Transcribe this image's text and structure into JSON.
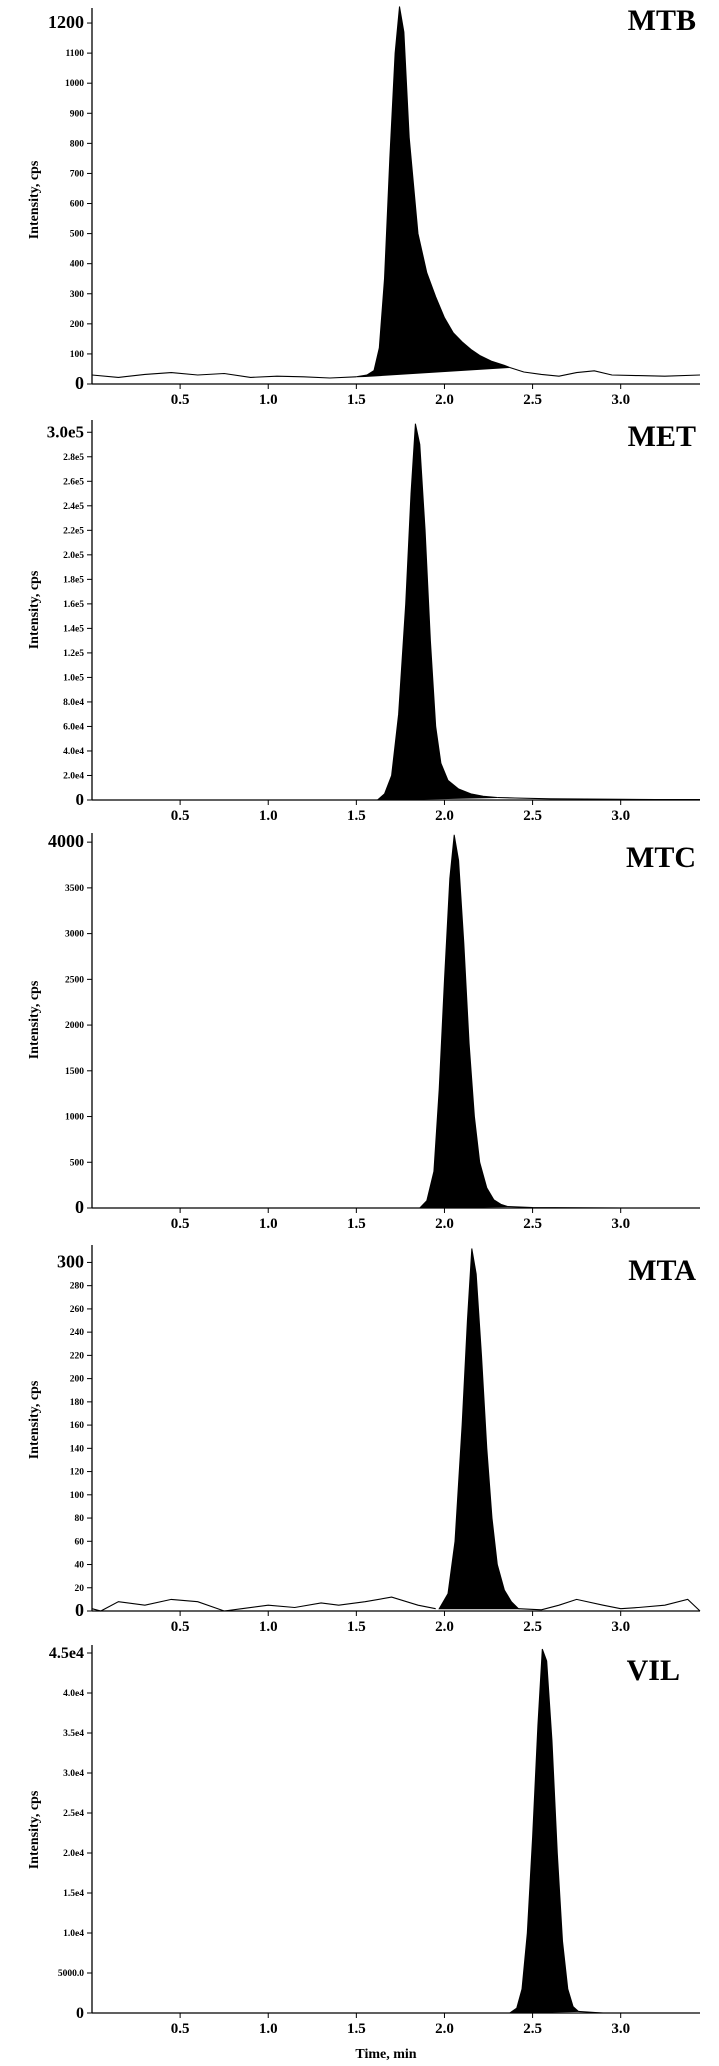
{
  "chart_data": [
    {
      "type": "area",
      "title": "MTB",
      "ylabel": "Intensity, cps",
      "xlabel": "",
      "xlim": [
        0,
        3.45
      ],
      "ylim": [
        0,
        1250
      ],
      "x_ticks": [
        0.5,
        1.0,
        1.5,
        2.0,
        2.5,
        3.0
      ],
      "x_tick_labels": [
        "0.5",
        "1.0",
        "1.5",
        "2.0",
        "2.5",
        "3.0"
      ],
      "y_ticks": [
        0,
        100,
        200,
        300,
        400,
        500,
        600,
        700,
        800,
        900,
        1000,
        1100,
        1200
      ],
      "y_tick_labels": [
        "0",
        "100",
        "200",
        "300",
        "400",
        "500",
        "600",
        "700",
        "800",
        "900",
        "1000",
        "1100",
        "1200"
      ],
      "baseline": [
        [
          0.0,
          30
        ],
        [
          0.15,
          22
        ],
        [
          0.3,
          32
        ],
        [
          0.45,
          38
        ],
        [
          0.6,
          30
        ],
        [
          0.75,
          35
        ],
        [
          0.9,
          22
        ],
        [
          1.05,
          26
        ],
        [
          1.2,
          24
        ],
        [
          1.35,
          20
        ],
        [
          1.5,
          24
        ]
      ],
      "peak": [
        [
          1.5,
          24
        ],
        [
          1.56,
          30
        ],
        [
          1.6,
          45
        ],
        [
          1.63,
          120
        ],
        [
          1.66,
          350
        ],
        [
          1.69,
          750
        ],
        [
          1.72,
          1100
        ],
        [
          1.745,
          1255
        ],
        [
          1.77,
          1170
        ],
        [
          1.8,
          820
        ],
        [
          1.85,
          500
        ],
        [
          1.9,
          370
        ],
        [
          1.95,
          290
        ],
        [
          2.0,
          220
        ],
        [
          2.05,
          170
        ],
        [
          2.1,
          140
        ],
        [
          2.15,
          115
        ],
        [
          2.2,
          95
        ],
        [
          2.27,
          75
        ],
        [
          2.34,
          62
        ],
        [
          2.37,
          55
        ]
      ],
      "peak_closure": [
        [
          2.37,
          55
        ],
        [
          1.55,
          25
        ]
      ],
      "tail": [
        [
          2.37,
          55
        ],
        [
          2.45,
          40
        ],
        [
          2.55,
          32
        ],
        [
          2.65,
          26
        ],
        [
          2.75,
          38
        ],
        [
          2.85,
          44
        ],
        [
          2.95,
          30
        ],
        [
          3.1,
          28
        ],
        [
          3.25,
          26
        ],
        [
          3.45,
          30
        ]
      ]
    },
    {
      "type": "area",
      "title": "MET",
      "ylabel": "Intensity, cps",
      "xlabel": "",
      "xlim": [
        0,
        3.45
      ],
      "ylim": [
        0,
        310000
      ],
      "x_ticks": [
        0.5,
        1.0,
        1.5,
        2.0,
        2.5,
        3.0
      ],
      "x_tick_labels": [
        "0.5",
        "1.0",
        "1.5",
        "2.0",
        "2.5",
        "3.0"
      ],
      "y_ticks": [
        0,
        20000,
        40000,
        60000,
        80000,
        100000,
        120000,
        140000,
        160000,
        180000,
        200000,
        220000,
        240000,
        260000,
        280000,
        300000
      ],
      "y_tick_labels": [
        "0",
        "2.0e4",
        "4.0e4",
        "6.0e4",
        "8.0e4",
        "1.0e5",
        "1.2e5",
        "1.4e5",
        "1.6e5",
        "1.8e5",
        "2.0e5",
        "2.2e5",
        "2.4e5",
        "2.6e5",
        "2.8e5",
        "3.0e5"
      ],
      "baseline": [
        [
          0.0,
          0
        ],
        [
          1.6,
          0
        ]
      ],
      "peak": [
        [
          1.62,
          0
        ],
        [
          1.66,
          5000
        ],
        [
          1.7,
          20000
        ],
        [
          1.74,
          70000
        ],
        [
          1.78,
          160000
        ],
        [
          1.81,
          250000
        ],
        [
          1.835,
          307000
        ],
        [
          1.86,
          290000
        ],
        [
          1.89,
          220000
        ],
        [
          1.92,
          130000
        ],
        [
          1.95,
          60000
        ],
        [
          1.98,
          30000
        ],
        [
          2.02,
          16000
        ],
        [
          2.08,
          9000
        ],
        [
          2.15,
          5000
        ],
        [
          2.22,
          3000
        ],
        [
          2.3,
          2000
        ]
      ],
      "peak_closure": [
        [
          2.3,
          2000
        ],
        [
          1.62,
          0
        ]
      ],
      "tail": [
        [
          2.3,
          2000
        ],
        [
          2.4,
          1600
        ],
        [
          2.6,
          1000
        ],
        [
          2.8,
          800
        ],
        [
          3.0,
          600
        ],
        [
          3.2,
          400
        ],
        [
          3.45,
          300
        ]
      ]
    },
    {
      "type": "area",
      "title": "MTC",
      "ylabel": "Intensity, cps",
      "xlabel": "",
      "xlim": [
        0,
        3.45
      ],
      "ylim": [
        0,
        4100
      ],
      "x_ticks": [
        0.5,
        1.0,
        1.5,
        2.0,
        2.5,
        3.0
      ],
      "x_tick_labels": [
        "0.5",
        "1.0",
        "1.5",
        "2.0",
        "2.5",
        "3.0"
      ],
      "y_ticks": [
        0,
        500,
        1000,
        1500,
        2000,
        2500,
        3000,
        3500,
        4000
      ],
      "y_tick_labels": [
        "0",
        "500",
        "1000",
        "1500",
        "2000",
        "2500",
        "3000",
        "3500",
        "4000"
      ],
      "baseline": [
        [
          0.0,
          0
        ],
        [
          1.85,
          0
        ]
      ],
      "peak": [
        [
          1.86,
          0
        ],
        [
          1.9,
          80
        ],
        [
          1.94,
          400
        ],
        [
          1.97,
          1300
        ],
        [
          2.0,
          2500
        ],
        [
          2.03,
          3600
        ],
        [
          2.055,
          4080
        ],
        [
          2.08,
          3800
        ],
        [
          2.11,
          2900
        ],
        [
          2.14,
          1800
        ],
        [
          2.17,
          1000
        ],
        [
          2.2,
          500
        ],
        [
          2.24,
          220
        ],
        [
          2.28,
          90
        ],
        [
          2.32,
          40
        ],
        [
          2.36,
          15
        ]
      ],
      "peak_closure": [
        [
          2.36,
          15
        ],
        [
          1.86,
          0
        ]
      ],
      "tail": [
        [
          2.36,
          15
        ],
        [
          2.5,
          5
        ],
        [
          3.0,
          0
        ],
        [
          3.45,
          0
        ]
      ]
    },
    {
      "type": "area",
      "title": "MTA",
      "ylabel": "Intensity, cps",
      "xlabel": "",
      "xlim": [
        0,
        3.45
      ],
      "ylim": [
        0,
        315
      ],
      "x_ticks": [
        0.5,
        1.0,
        1.5,
        2.0,
        2.5,
        3.0
      ],
      "x_tick_labels": [
        "0.5",
        "1.0",
        "1.5",
        "2.0",
        "2.5",
        "3.0"
      ],
      "y_ticks": [
        0,
        20,
        40,
        60,
        80,
        100,
        120,
        140,
        160,
        180,
        200,
        220,
        240,
        260,
        280,
        300
      ],
      "y_tick_labels": [
        "0",
        "20",
        "40",
        "60",
        "80",
        "100",
        "120",
        "140",
        "160",
        "180",
        "200",
        "220",
        "240",
        "260",
        "280",
        "300"
      ],
      "baseline": [
        [
          0.0,
          2
        ],
        [
          0.05,
          0
        ],
        [
          0.15,
          8
        ],
        [
          0.3,
          5
        ],
        [
          0.45,
          10
        ],
        [
          0.6,
          8
        ],
        [
          0.75,
          0
        ],
        [
          0.85,
          2
        ],
        [
          1.0,
          5
        ],
        [
          1.15,
          3
        ],
        [
          1.3,
          7
        ],
        [
          1.4,
          5
        ],
        [
          1.55,
          8
        ],
        [
          1.7,
          12
        ],
        [
          1.85,
          5
        ],
        [
          1.95,
          2
        ]
      ],
      "peak": [
        [
          1.97,
          2
        ],
        [
          2.02,
          15
        ],
        [
          2.06,
          60
        ],
        [
          2.1,
          160
        ],
        [
          2.13,
          250
        ],
        [
          2.155,
          312
        ],
        [
          2.18,
          290
        ],
        [
          2.21,
          220
        ],
        [
          2.24,
          140
        ],
        [
          2.27,
          80
        ],
        [
          2.3,
          40
        ],
        [
          2.34,
          18
        ],
        [
          2.38,
          8
        ],
        [
          2.42,
          2
        ]
      ],
      "peak_closure": [
        [
          2.42,
          2
        ],
        [
          1.97,
          2
        ]
      ],
      "tail": [
        [
          2.42,
          2
        ],
        [
          2.55,
          1
        ],
        [
          2.65,
          5
        ],
        [
          2.75,
          10
        ],
        [
          2.9,
          5
        ],
        [
          3.0,
          2
        ],
        [
          3.1,
          3
        ],
        [
          3.25,
          5
        ],
        [
          3.38,
          10
        ],
        [
          3.45,
          0
        ]
      ]
    },
    {
      "type": "area",
      "title": "VIL",
      "ylabel": "Intensity, cps",
      "xlabel": "Time, min",
      "xlim": [
        0,
        3.45
      ],
      "ylim": [
        0,
        46000
      ],
      "x_ticks": [
        0.5,
        1.0,
        1.5,
        2.0,
        2.5,
        3.0
      ],
      "x_tick_labels": [
        "0.5",
        "1.0",
        "1.5",
        "2.0",
        "2.5",
        "3.0"
      ],
      "y_ticks": [
        0,
        5000,
        10000,
        15000,
        20000,
        25000,
        30000,
        35000,
        40000,
        45000
      ],
      "y_tick_labels": [
        "0",
        "5000.0",
        "1.0e4",
        "1.5e4",
        "2.0e4",
        "2.5e4",
        "3.0e4",
        "3.5e4",
        "4.0e4",
        "4.5e4"
      ],
      "baseline": [
        [
          0.0,
          0
        ],
        [
          2.35,
          0
        ]
      ],
      "peak": [
        [
          2.37,
          0
        ],
        [
          2.41,
          600
        ],
        [
          2.44,
          3000
        ],
        [
          2.47,
          10000
        ],
        [
          2.5,
          22000
        ],
        [
          2.53,
          36000
        ],
        [
          2.555,
          45500
        ],
        [
          2.58,
          44000
        ],
        [
          2.61,
          34000
        ],
        [
          2.64,
          20000
        ],
        [
          2.67,
          9000
        ],
        [
          2.7,
          3000
        ],
        [
          2.73,
          800
        ],
        [
          2.76,
          200
        ]
      ],
      "peak_closure": [
        [
          2.76,
          200
        ],
        [
          2.37,
          0
        ]
      ],
      "tail": [
        [
          2.76,
          200
        ],
        [
          2.9,
          0
        ],
        [
          3.45,
          0
        ]
      ]
    }
  ]
}
